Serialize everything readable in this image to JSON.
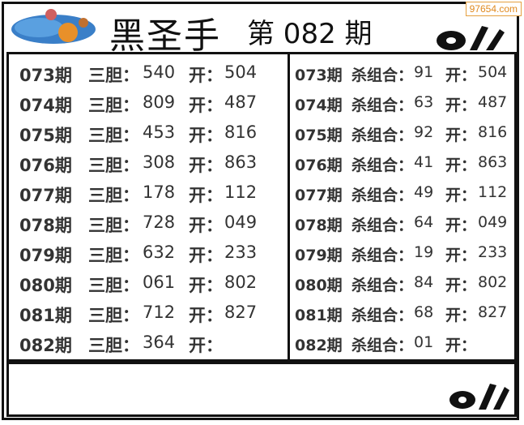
{
  "header": {
    "title": "黑圣手",
    "issue": "第 082 期",
    "watermark": "97654.com",
    "brand_logo": "ok"
  },
  "colors": {
    "border": "#111111",
    "text": "#333333",
    "watermark": "#e08a20"
  },
  "left_table": {
    "label_a": "三胆：",
    "label_b": "开：",
    "rows": [
      {
        "period": "073期",
        "value": "540",
        "result": "504"
      },
      {
        "period": "074期",
        "value": "809",
        "result": "487"
      },
      {
        "period": "075期",
        "value": "453",
        "result": "816"
      },
      {
        "period": "076期",
        "value": "308",
        "result": "863"
      },
      {
        "period": "077期",
        "value": "178",
        "result": "112"
      },
      {
        "period": "078期",
        "value": "728",
        "result": "049"
      },
      {
        "period": "079期",
        "value": "632",
        "result": "233"
      },
      {
        "period": "080期",
        "value": "061",
        "result": "802"
      },
      {
        "period": "081期",
        "value": "712",
        "result": "827"
      },
      {
        "period": "082期",
        "value": "364",
        "result": ""
      }
    ]
  },
  "right_table": {
    "label_a": "杀组合：",
    "label_b": "开：",
    "rows": [
      {
        "period": "073期",
        "value": "91",
        "result": "504"
      },
      {
        "period": "074期",
        "value": "63",
        "result": "487"
      },
      {
        "period": "075期",
        "value": "92",
        "result": "816"
      },
      {
        "period": "076期",
        "value": "41",
        "result": "863"
      },
      {
        "period": "077期",
        "value": "49",
        "result": "112"
      },
      {
        "period": "078期",
        "value": "64",
        "result": "049"
      },
      {
        "period": "079期",
        "value": "19",
        "result": "233"
      },
      {
        "period": "080期",
        "value": "84",
        "result": "802"
      },
      {
        "period": "081期",
        "value": "68",
        "result": "827"
      },
      {
        "period": "082期",
        "value": "01",
        "result": ""
      }
    ]
  }
}
